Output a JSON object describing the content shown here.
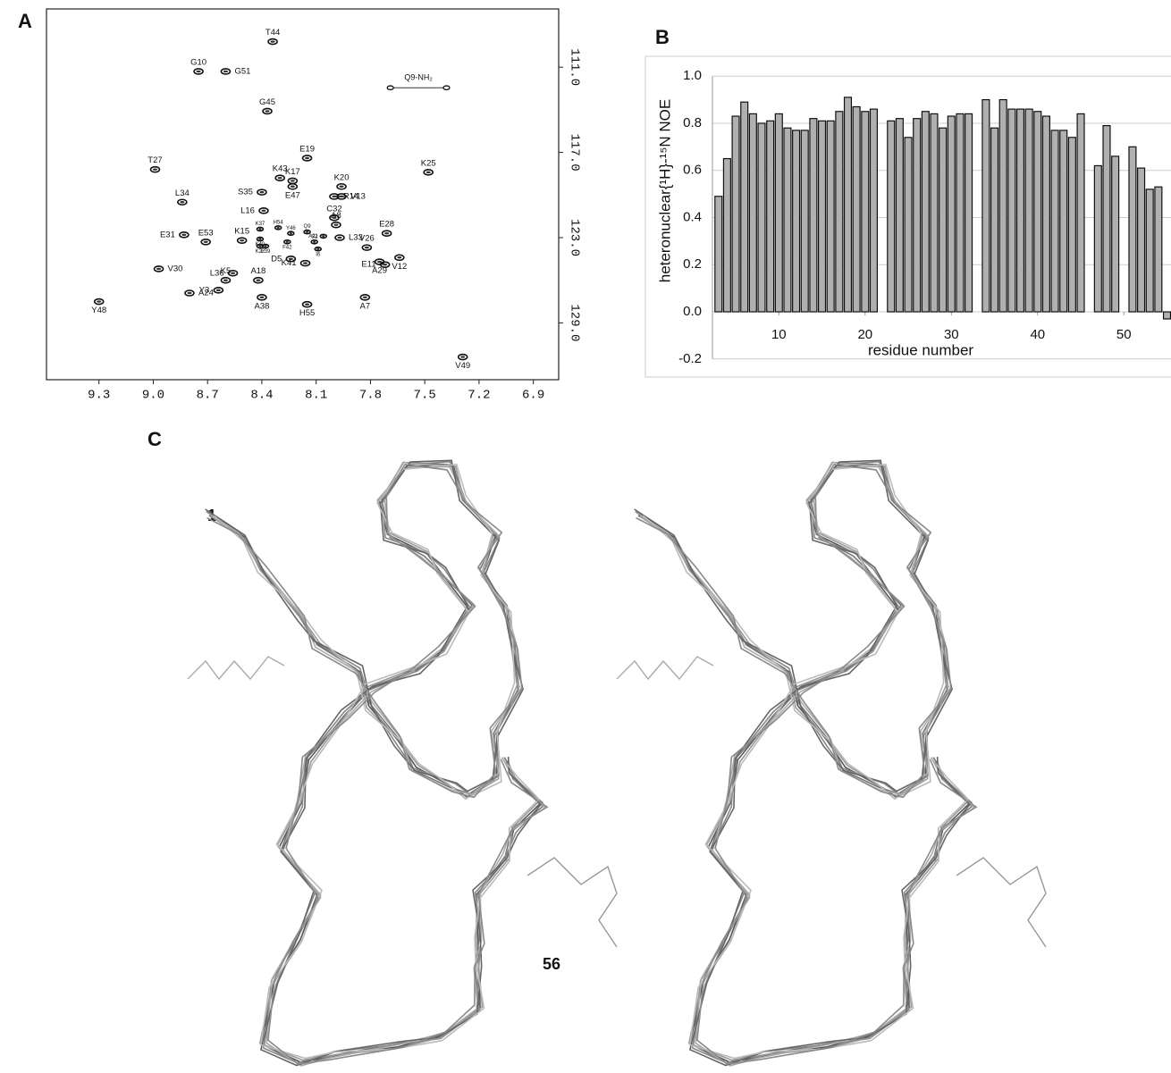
{
  "chart_data": [
    {
      "type": "scatter",
      "panel_label": "A",
      "xlim": [
        9.59,
        6.76
      ],
      "ylim": [
        106.9,
        133.0
      ],
      "xticks": [
        9.3,
        {
          "value": 9,
          "label": "9.0"
        },
        8.7,
        8.4,
        8.1,
        7.8,
        7.5,
        7.2,
        6.9
      ],
      "yticks": [
        {
          "value": 111,
          "label": "111.0"
        },
        {
          "value": 117,
          "label": "117.0"
        },
        {
          "value": 123,
          "label": "123.0"
        },
        {
          "value": 129,
          "label": "129.0"
        }
      ],
      "labels": [
        "T44",
        "G10",
        "G51",
        "G45",
        "E19",
        "T27",
        "K25",
        "K43",
        "K17",
        "E47",
        "K20",
        "S35",
        "R14",
        "V13",
        "L34",
        "L16",
        "C32",
        "A8",
        "E31",
        "E53",
        "K15",
        "E28",
        "H54",
        "Q9",
        "Y46",
        "K37",
        "F42",
        "S2",
        "I6",
        "A21",
        "K40",
        "K22",
        "E39",
        "L33",
        "V26",
        "D5",
        "K41",
        "A29",
        "E11",
        "V12",
        "V30",
        "L36",
        "K5",
        "A18",
        "Y3",
        "A24",
        "A38",
        "A7",
        "H55",
        "Y48",
        "V49"
      ],
      "x": [
        8.34,
        8.75,
        8.6,
        8.37,
        8.15,
        8.99,
        7.48,
        8.3,
        8.23,
        8.23,
        7.96,
        8.4,
        8.0,
        7.96,
        8.84,
        8.39,
        8.0,
        7.99,
        8.83,
        8.71,
        8.51,
        7.71,
        8.31,
        8.15,
        8.24,
        8.41,
        8.26,
        8.11,
        8.09,
        8.06,
        8.41,
        8.41,
        8.38,
        7.97,
        7.82,
        8.24,
        8.16,
        7.75,
        7.72,
        7.64,
        8.97,
        8.56,
        8.6,
        8.42,
        8.64,
        8.8,
        8.4,
        7.83,
        8.15,
        9.3,
        7.29
      ],
      "y": [
        109.2,
        111.3,
        111.3,
        114.1,
        117.4,
        118.2,
        118.4,
        118.8,
        119.0,
        119.4,
        119.4,
        119.8,
        120.1,
        120.1,
        120.5,
        121.1,
        121.6,
        122.1,
        122.8,
        123.3,
        123.2,
        122.7,
        122.3,
        122.6,
        122.7,
        122.4,
        123.3,
        123.3,
        123.8,
        122.9,
        123.1,
        123.6,
        123.6,
        123.0,
        123.7,
        124.5,
        124.8,
        124.7,
        124.9,
        124.4,
        125.2,
        125.5,
        126.0,
        126.0,
        126.7,
        126.9,
        127.2,
        127.2,
        127.7,
        127.5,
        131.4
      ],
      "nh2": {
        "label": "Q9-NH₂",
        "x": [
          7.69,
          7.38
        ],
        "y": [
          112.45,
          112.45
        ]
      }
    },
    {
      "type": "bar",
      "panel_label": "B",
      "ylabel": "heteronuclear{¹H}-¹⁵N NOE",
      "xlabel": "residue number",
      "color": "#b0b0b0",
      "grid": true,
      "xlim": [
        2.3,
        56.5
      ],
      "ylim": [
        -0.25,
        1.05
      ],
      "xticks": [
        10,
        20,
        30,
        40,
        50
      ],
      "yticks": [
        -0.2,
        {
          "value": 0,
          "label": "0.0"
        },
        0.2,
        0.4,
        0.6,
        0.8,
        {
          "value": 1,
          "label": "1.0"
        }
      ],
      "x": [
        3,
        4,
        5,
        6,
        7,
        8,
        9,
        10,
        11,
        12,
        13,
        14,
        15,
        16,
        17,
        18,
        19,
        20,
        21,
        22,
        23,
        24,
        25,
        26,
        27,
        28,
        29,
        30,
        31,
        32,
        33,
        34,
        35,
        36,
        37,
        38,
        39,
        40,
        41,
        42,
        43,
        44,
        45,
        46,
        47,
        48,
        49,
        50,
        51,
        52,
        53,
        54,
        55
      ],
      "values": [
        0.49,
        0.65,
        0.83,
        0.89,
        0.84,
        0.8,
        0.81,
        0.84,
        0.78,
        0.77,
        0.77,
        0.82,
        0.81,
        0.81,
        0.85,
        0.91,
        0.87,
        0.85,
        0.86,
        null,
        0.81,
        0.82,
        0.74,
        0.82,
        0.85,
        0.84,
        0.78,
        0.83,
        0.84,
        0.84,
        null,
        0.9,
        0.78,
        0.9,
        0.86,
        0.86,
        0.86,
        0.85,
        0.83,
        0.77,
        0.77,
        0.74,
        0.84,
        null,
        0.62,
        0.79,
        0.66,
        null,
        0.7,
        0.61,
        0.52,
        0.53,
        -0.03
      ]
    }
  ],
  "structure": {
    "panel_label": "C",
    "labels": [
      "1",
      "56"
    ]
  }
}
